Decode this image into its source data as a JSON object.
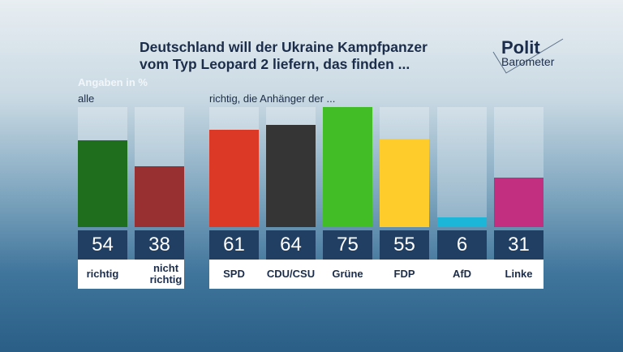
{
  "chart_data": {
    "type": "bar",
    "title": "Deutschland will der Ukraine Kampfpanzer vom Typ Leopard 2 liefern, das finden ...",
    "unit_label": "Angaben in %",
    "ylim": [
      0,
      75
    ],
    "groups": [
      {
        "label": "alle",
        "categories": [
          "richtig",
          "nicht richtig"
        ],
        "values": [
          54,
          38
        ],
        "colors": [
          "#1e6e1e",
          "#983032"
        ]
      },
      {
        "label": "richtig, die Anhänger der ...",
        "categories": [
          "SPD",
          "CDU/CSU",
          "Grüne",
          "FDP",
          "AfD",
          "Linke"
        ],
        "values": [
          61,
          64,
          75,
          55,
          6,
          31
        ],
        "colors": [
          "#dc3a27",
          "#353535",
          "#43bd26",
          "#fecd2c",
          "#1bb6d8",
          "#c22e80"
        ]
      }
    ]
  },
  "logo": {
    "line1": "Polit",
    "line2": "Barometer"
  }
}
